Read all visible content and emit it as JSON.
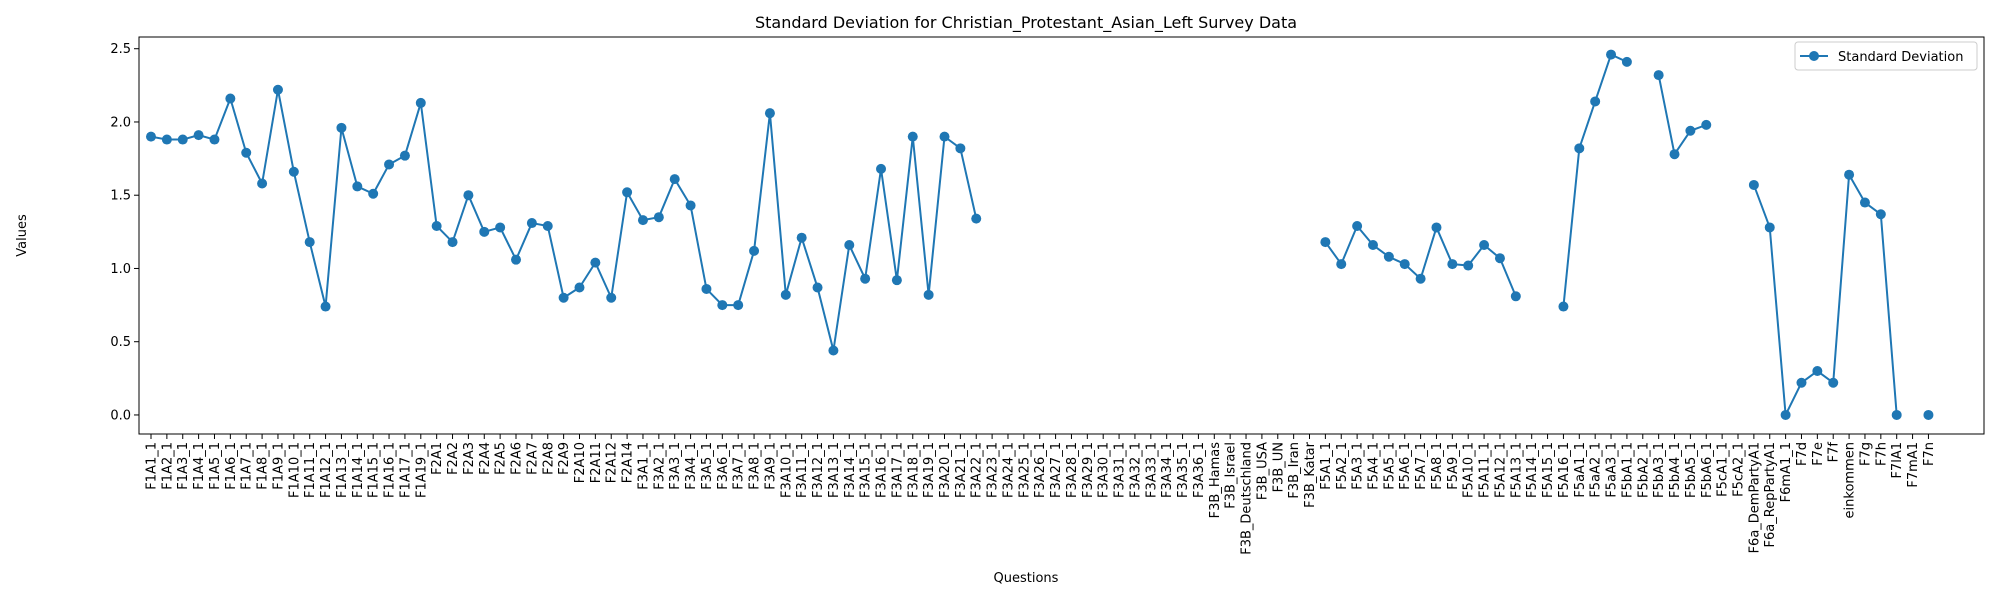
{
  "chart_data": {
    "type": "line",
    "title": "Standard Deviation for Christian_Protestant_Asian_Left Survey Data",
    "xlabel": "Questions",
    "ylabel": "Values",
    "ylim": [
      -0.13,
      2.58
    ],
    "yticks": [
      "0.0",
      "0.5",
      "1.0",
      "1.5",
      "2.0",
      "2.5"
    ],
    "legend_position": "top-right",
    "grid": false,
    "series_color": "#1f77b4",
    "categories": [
      "F1A1_1",
      "F1A2_1",
      "F1A3_1",
      "F1A4_1",
      "F1A5_1",
      "F1A6_1",
      "F1A7_1",
      "F1A8_1",
      "F1A9_1",
      "F1A10_1",
      "F1A11_1",
      "F1A12_1",
      "F1A13_1",
      "F1A14_1",
      "F1A15_1",
      "F1A16_1",
      "F1A17_1",
      "F1A19_1",
      "F2A1",
      "F2A2",
      "F2A3",
      "F2A4",
      "F2A5",
      "F2A6",
      "F2A7",
      "F2A8",
      "F2A9",
      "F2A10",
      "F2A11",
      "F2A12",
      "F2A14",
      "F3A1_1",
      "F3A2_1",
      "F3A3_1",
      "F3A4_1",
      "F3A5_1",
      "F3A6_1",
      "F3A7_1",
      "F3A8_1",
      "F3A9_1",
      "F3A10_1",
      "F3A11_1",
      "F3A12_1",
      "F3A13_1",
      "F3A14_1",
      "F3A15_1",
      "F3A16_1",
      "F3A17_1",
      "F3A18_1",
      "F3A19_1",
      "F3A20_1",
      "F3A21_1",
      "F3A22_1",
      "F3A23_1",
      "F3A24_1",
      "F3A25_1",
      "F3A26_1",
      "F3A27_1",
      "F3A28_1",
      "F3A29_1",
      "F3A30_1",
      "F3A31_1",
      "F3A32_1",
      "F3A33_1",
      "F3A34_1",
      "F3A35_1",
      "F3A36_1",
      "F3B_Hamas",
      "F3B_Israel",
      "F3B_Deutschland",
      "F3B_USA",
      "F3B_UN",
      "F3B_Iran",
      "F3B_Katar",
      "F5A1_1",
      "F5A2_1",
      "F5A3_1",
      "F5A4_1",
      "F5A5_1",
      "F5A6_1",
      "F5A7_1",
      "F5A8_1",
      "F5A9_1",
      "F5A10_1",
      "F5A11_1",
      "F5A12_1",
      "F5A13_1",
      "F5A14_1",
      "F5A15_1",
      "F5A16_1",
      "F5aA1_1",
      "F5aA2_1",
      "F5aA3_1",
      "F5bA1_1",
      "F5bA2_1",
      "F5bA3_1",
      "F5bA4_1",
      "F5bA5_1",
      "F5bA6_1",
      "F5cA1_1",
      "F5cA2_1",
      "F6a_DemPartyA1",
      "F6a_RepPartyA1",
      "F6mA1_1",
      "F7d",
      "F7e",
      "F7f",
      "einkommen",
      "F7g",
      "F7h",
      "F7lA1",
      "F7mA1",
      "F7n"
    ],
    "series": [
      {
        "name": "Standard Deviation",
        "values": [
          1.9,
          1.88,
          1.88,
          1.91,
          1.88,
          2.16,
          1.79,
          1.58,
          2.22,
          1.66,
          1.18,
          0.74,
          1.96,
          1.56,
          1.51,
          1.71,
          1.77,
          2.13,
          1.29,
          1.18,
          1.5,
          1.25,
          1.28,
          1.06,
          1.31,
          1.29,
          0.8,
          0.87,
          1.04,
          0.8,
          1.52,
          1.33,
          1.35,
          1.61,
          1.43,
          0.86,
          0.75,
          0.75,
          1.12,
          2.06,
          0.82,
          1.21,
          0.87,
          0.44,
          1.16,
          0.93,
          1.68,
          0.92,
          1.9,
          0.82,
          1.9,
          1.82,
          1.34,
          null,
          null,
          null,
          null,
          null,
          null,
          null,
          null,
          null,
          null,
          null,
          null,
          null,
          null,
          null,
          null,
          null,
          null,
          null,
          null,
          null,
          1.18,
          1.03,
          1.29,
          1.16,
          1.08,
          1.03,
          0.93,
          1.28,
          1.03,
          1.02,
          1.16,
          1.07,
          0.81,
          null,
          null,
          0.74,
          1.82,
          2.14,
          2.46,
          2.41,
          null,
          2.32,
          1.78,
          1.94,
          1.98,
          null,
          null,
          1.57,
          1.28,
          0.0,
          0.22,
          0.3,
          0.22,
          1.64,
          1.45,
          1.37,
          0.0,
          null,
          0.0
        ]
      }
    ]
  }
}
